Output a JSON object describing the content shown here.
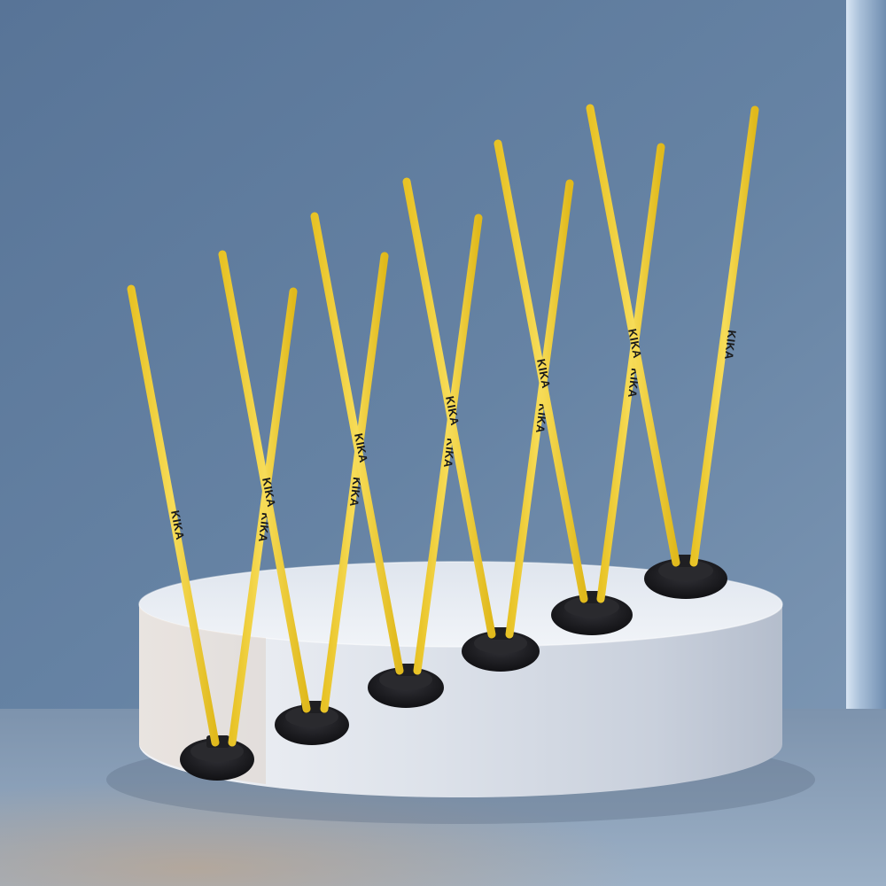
{
  "scene": {
    "subject": "agility-pole-set",
    "set_count": 6,
    "pole_color": "#f2d23a",
    "base_color": "#1c1c1e",
    "wall_color": "#6b87a5",
    "podium_color": "#e9edf3",
    "floor_color": "#8ba0b8"
  },
  "brand": {
    "logo_text": "KIKA"
  }
}
